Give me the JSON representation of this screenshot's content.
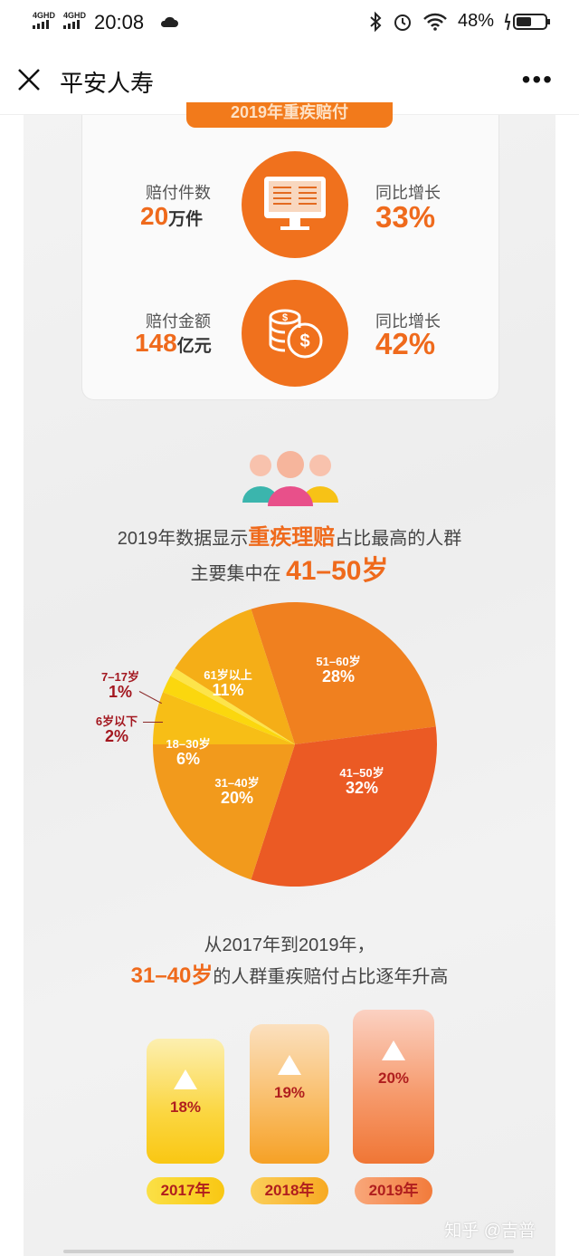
{
  "status_bar": {
    "signal1": "4GHD",
    "signal2": "4GHD",
    "time": "20:08",
    "battery": "48%"
  },
  "navbar": {
    "title": "平安人寿"
  },
  "card": {
    "banner": "2019年重疾赔付",
    "rows": [
      {
        "label": "赔付件数",
        "big": "20",
        "unit": "万件",
        "growth_label": "同比增长",
        "growth": "33%"
      },
      {
        "label": "赔付金额",
        "big": "148",
        "unit": "亿元",
        "growth_label": "同比增长",
        "growth": "42%"
      }
    ]
  },
  "headline": {
    "part1": "2019年数据显示",
    "highlight": "重疾理赔",
    "part2": "占比最高的人群",
    "line2_prefix": "主要集中在",
    "age": "41–50岁"
  },
  "chart_data": [
    {
      "type": "pie",
      "categories": [
        "51–60岁",
        "41–50岁",
        "31–40岁",
        "18–30岁",
        "6岁以下",
        "7–17岁",
        "61岁以上"
      ],
      "values": [
        28,
        32,
        20,
        6,
        2,
        1,
        11
      ],
      "labels": [
        "28%",
        "32%",
        "20%",
        "6%",
        "2%",
        "1%",
        "11%"
      ],
      "colors": [
        "#f0801f",
        "#eb5a24",
        "#f29a1c",
        "#f7be16",
        "#fbd70e",
        "#fde44a",
        "#f5ae17"
      ]
    },
    {
      "type": "bar",
      "categories": [
        "2017年",
        "2018年",
        "2019年"
      ],
      "values": [
        18,
        19,
        20
      ],
      "labels": [
        "18%",
        "19%",
        "20%"
      ]
    }
  ],
  "trend": {
    "line1": "从2017年到2019年，",
    "age": "31–40岁",
    "line2": "的人群重疾赔付占比逐年升高"
  },
  "watermark": "知乎 @吉普"
}
